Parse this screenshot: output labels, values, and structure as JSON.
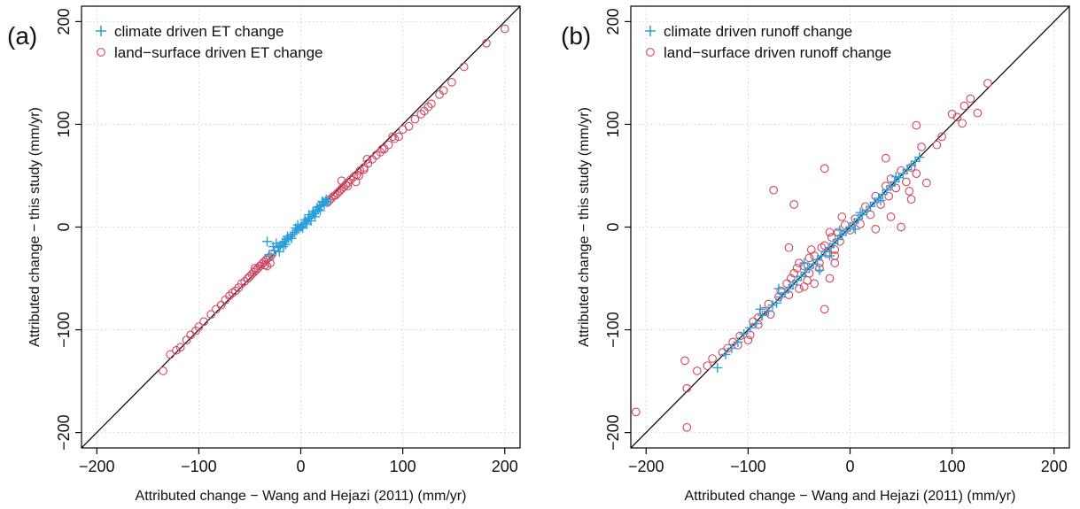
{
  "chart_data": [
    {
      "type": "scatter",
      "panel_label": "(a)",
      "xlabel": "Attributed change − Wang and Hejazi (2011) (mm/yr)",
      "ylabel": "Attributed change − this study (mm/yr)",
      "xlim": [
        -215,
        215
      ],
      "ylim": [
        -215,
        215
      ],
      "ticks": [
        -200,
        -100,
        0,
        100,
        200
      ],
      "grid": true,
      "one_to_one_line": true,
      "legend_position": "top-left",
      "series": [
        {
          "name": "climate driven ET change",
          "marker": "plus",
          "color": "#2b9fd9",
          "points": [
            [
              -33,
              -14
            ],
            [
              -31,
              -27
            ],
            [
              -27,
              -19
            ],
            [
              -24,
              -16
            ],
            [
              -22,
              -20
            ],
            [
              -20,
              -18
            ],
            [
              -18,
              -15
            ],
            [
              -16,
              -14
            ],
            [
              -14,
              -12
            ],
            [
              -12,
              -11
            ],
            [
              -10,
              -9
            ],
            [
              -8,
              -7
            ],
            [
              -6,
              -5
            ],
            [
              -4,
              -3
            ],
            [
              -2,
              -2
            ],
            [
              0,
              0
            ],
            [
              1,
              1
            ],
            [
              3,
              3
            ],
            [
              5,
              5
            ],
            [
              7,
              8
            ],
            [
              9,
              9
            ],
            [
              11,
              12
            ],
            [
              13,
              13
            ],
            [
              15,
              15
            ],
            [
              17,
              17
            ],
            [
              18,
              20
            ],
            [
              20,
              21
            ],
            [
              22,
              24
            ],
            [
              24,
              25
            ],
            [
              25,
              27
            ],
            [
              -3,
              2
            ],
            [
              4,
              7
            ],
            [
              6,
              3
            ],
            [
              8,
              12
            ],
            [
              10,
              6
            ],
            [
              12,
              15
            ],
            [
              14,
              10
            ],
            [
              16,
              19
            ],
            [
              19,
              16
            ],
            [
              21,
              25
            ],
            [
              -5,
              -1
            ],
            [
              -9,
              -11
            ],
            [
              -13,
              -9
            ],
            [
              -17,
              -19
            ],
            [
              2,
              -1
            ],
            [
              23,
              22
            ],
            [
              26,
              24
            ],
            [
              -26,
              -23
            ],
            [
              -21,
              -24
            ],
            [
              -15,
              -17
            ]
          ]
        },
        {
          "name": "land−surface driven ET change",
          "marker": "circle",
          "color": "#d0455f",
          "points": [
            [
              200,
              193
            ],
            [
              182,
              179
            ],
            [
              160,
              156
            ],
            [
              148,
              141
            ],
            [
              140,
              133
            ],
            [
              136,
              129
            ],
            [
              128,
              120
            ],
            [
              125,
              117
            ],
            [
              121,
              113
            ],
            [
              118,
              110
            ],
            [
              112,
              105
            ],
            [
              106,
              98
            ],
            [
              100,
              95
            ],
            [
              96,
              88
            ],
            [
              92,
              86
            ],
            [
              86,
              80
            ],
            [
              82,
              76
            ],
            [
              78,
              73
            ],
            [
              74,
              70
            ],
            [
              70,
              66
            ],
            [
              66,
              62
            ],
            [
              62,
              58
            ],
            [
              58,
              55
            ],
            [
              55,
              51
            ],
            [
              52,
              49
            ],
            [
              49,
              46
            ],
            [
              46,
              43
            ],
            [
              44,
              41
            ],
            [
              42,
              39
            ],
            [
              40,
              37
            ],
            [
              38,
              35
            ],
            [
              36,
              33
            ],
            [
              34,
              31
            ],
            [
              32,
              30
            ],
            [
              30,
              28
            ],
            [
              28,
              26
            ],
            [
              26,
              24
            ],
            [
              -28,
              -26
            ],
            [
              -30,
              -29
            ],
            [
              -32,
              -30
            ],
            [
              -34,
              -32
            ],
            [
              -36,
              -34
            ],
            [
              -38,
              -36
            ],
            [
              -40,
              -38
            ],
            [
              -42,
              -40
            ],
            [
              -44,
              -42
            ],
            [
              -46,
              -44
            ],
            [
              -48,
              -46
            ],
            [
              -50,
              -48
            ],
            [
              -52,
              -50
            ],
            [
              -55,
              -53
            ],
            [
              -58,
              -55
            ],
            [
              -61,
              -59
            ],
            [
              -64,
              -62
            ],
            [
              -67,
              -64
            ],
            [
              -70,
              -67
            ],
            [
              -74,
              -71
            ],
            [
              -78,
              -76
            ],
            [
              -83,
              -80
            ],
            [
              -88,
              -85
            ],
            [
              -95,
              -92
            ],
            [
              -100,
              -97
            ],
            [
              -103,
              -101
            ],
            [
              -108,
              -105
            ],
            [
              -112,
              -110
            ],
            [
              -118,
              -117
            ],
            [
              -122,
              -120
            ],
            [
              -128,
              -124
            ],
            [
              -135,
              -140
            ],
            [
              -35,
              -37
            ],
            [
              -45,
              -40
            ],
            [
              -33,
              -38
            ],
            [
              -30,
              -35
            ],
            [
              54,
              44
            ],
            [
              57,
              50
            ],
            [
              62,
              56
            ],
            [
              46,
              40
            ],
            [
              40,
              45
            ],
            [
              65,
              66
            ],
            [
              80,
              76
            ],
            [
              90,
              88
            ]
          ]
        }
      ]
    },
    {
      "type": "scatter",
      "panel_label": "(b)",
      "xlabel": "Attributed change − Wang and Hejazi (2011) (mm/yr)",
      "ylabel": "Attributed change − this study (mm/yr)",
      "xlim": [
        -215,
        215
      ],
      "ylim": [
        -215,
        215
      ],
      "ticks": [
        -200,
        -100,
        0,
        100,
        200
      ],
      "grid": true,
      "one_to_one_line": true,
      "legend_position": "top-left",
      "series": [
        {
          "name": "climate driven runoff change",
          "marker": "plus",
          "color": "#2b9fd9",
          "points": [
            [
              -130,
              -137
            ],
            [
              -122,
              -124
            ],
            [
              -116,
              -118
            ],
            [
              -110,
              -112
            ],
            [
              -104,
              -104
            ],
            [
              -98,
              -98
            ],
            [
              -92,
              -94
            ],
            [
              -86,
              -86
            ],
            [
              -80,
              -82
            ],
            [
              -76,
              -76
            ],
            [
              -72,
              -74
            ],
            [
              -68,
              -68
            ],
            [
              -64,
              -64
            ],
            [
              -60,
              -60
            ],
            [
              -56,
              -56
            ],
            [
              -52,
              -52
            ],
            [
              -48,
              -48
            ],
            [
              -44,
              -44
            ],
            [
              -40,
              -40
            ],
            [
              -36,
              -36
            ],
            [
              -32,
              -32
            ],
            [
              -28,
              -28
            ],
            [
              -24,
              -24
            ],
            [
              -20,
              -20
            ],
            [
              -16,
              -16
            ],
            [
              -12,
              -12
            ],
            [
              -8,
              -8
            ],
            [
              -4,
              -4
            ],
            [
              0,
              0
            ],
            [
              4,
              4
            ],
            [
              8,
              8
            ],
            [
              12,
              12
            ],
            [
              16,
              16
            ],
            [
              20,
              20
            ],
            [
              24,
              24
            ],
            [
              28,
              28
            ],
            [
              32,
              32
            ],
            [
              36,
              36
            ],
            [
              40,
              40
            ],
            [
              44,
              44
            ],
            [
              48,
              48
            ],
            [
              52,
              52
            ],
            [
              56,
              56
            ],
            [
              60,
              60
            ],
            [
              64,
              64
            ],
            [
              68,
              68
            ],
            [
              -30,
              -42
            ],
            [
              -45,
              -35
            ],
            [
              -70,
              -60
            ],
            [
              -88,
              -80
            ],
            [
              -20,
              -28
            ],
            [
              10,
              14
            ],
            [
              30,
              26
            ],
            [
              45,
              49
            ],
            [
              -10,
              -3
            ],
            [
              5,
              -2
            ]
          ]
        },
        {
          "name": "land−surface driven runoff change",
          "marker": "circle",
          "color": "#d0455f",
          "points": [
            [
              -210,
              -180
            ],
            [
              -160,
              -195
            ],
            [
              -160,
              -157
            ],
            [
              -162,
              -130
            ],
            [
              -150,
              -140
            ],
            [
              -140,
              -135
            ],
            [
              -135,
              -128
            ],
            [
              -120,
              -118
            ],
            [
              -115,
              -112
            ],
            [
              -108,
              -106
            ],
            [
              -100,
              -110
            ],
            [
              -95,
              -92
            ],
            [
              -90,
              -88
            ],
            [
              -85,
              -82
            ],
            [
              -80,
              -75
            ],
            [
              -78,
              -85
            ],
            [
              -70,
              -68
            ],
            [
              -68,
              -62
            ],
            [
              -62,
              -55
            ],
            [
              -60,
              -66
            ],
            [
              -58,
              -50
            ],
            [
              -55,
              -45
            ],
            [
              -52,
              -40
            ],
            [
              -50,
              -60
            ],
            [
              -45,
              -38
            ],
            [
              -42,
              -52
            ],
            [
              -40,
              -30
            ],
            [
              -38,
              -22
            ],
            [
              -35,
              -28
            ],
            [
              -30,
              -40
            ],
            [
              -28,
              -20
            ],
            [
              -25,
              -18
            ],
            [
              -22,
              -26
            ],
            [
              -18,
              -10
            ],
            [
              -15,
              -22
            ],
            [
              -12,
              -5
            ],
            [
              -10,
              -14
            ],
            [
              -5,
              2
            ],
            [
              0,
              -3
            ],
            [
              5,
              8
            ],
            [
              10,
              3
            ],
            [
              15,
              20
            ],
            [
              20,
              12
            ],
            [
              25,
              30
            ],
            [
              30,
              22
            ],
            [
              35,
              40
            ],
            [
              38,
              30
            ],
            [
              40,
              47
            ],
            [
              45,
              38
            ],
            [
              50,
              55
            ],
            [
              55,
              44
            ],
            [
              60,
              58
            ],
            [
              65,
              52
            ],
            [
              -75,
              36
            ],
            [
              -55,
              22
            ],
            [
              -25,
              57
            ],
            [
              35,
              67
            ],
            [
              65,
              99
            ],
            [
              70,
              78
            ],
            [
              75,
              43
            ],
            [
              60,
              27
            ],
            [
              50,
              0
            ],
            [
              40,
              10
            ],
            [
              25,
              -2
            ],
            [
              -8,
              10
            ],
            [
              -20,
              -5
            ],
            [
              -60,
              -20
            ],
            [
              -50,
              -35
            ],
            [
              -45,
              -58
            ],
            [
              -20,
              -50
            ],
            [
              -25,
              -80
            ],
            [
              -35,
              -55
            ],
            [
              -40,
              -45
            ],
            [
              -30,
              -35
            ],
            [
              -15,
              -35
            ],
            [
              -15,
              -28
            ],
            [
              110,
              101
            ],
            [
              112,
              118
            ],
            [
              118,
              125
            ],
            [
              125,
              111
            ],
            [
              135,
              140
            ],
            [
              100,
              110
            ],
            [
              105,
              107
            ],
            [
              90,
              88
            ],
            [
              85,
              80
            ],
            [
              58,
              35
            ],
            [
              -98,
              -105
            ],
            [
              -110,
              -115
            ],
            [
              -125,
              -122
            ],
            [
              -90,
              -95
            ]
          ]
        }
      ]
    }
  ]
}
